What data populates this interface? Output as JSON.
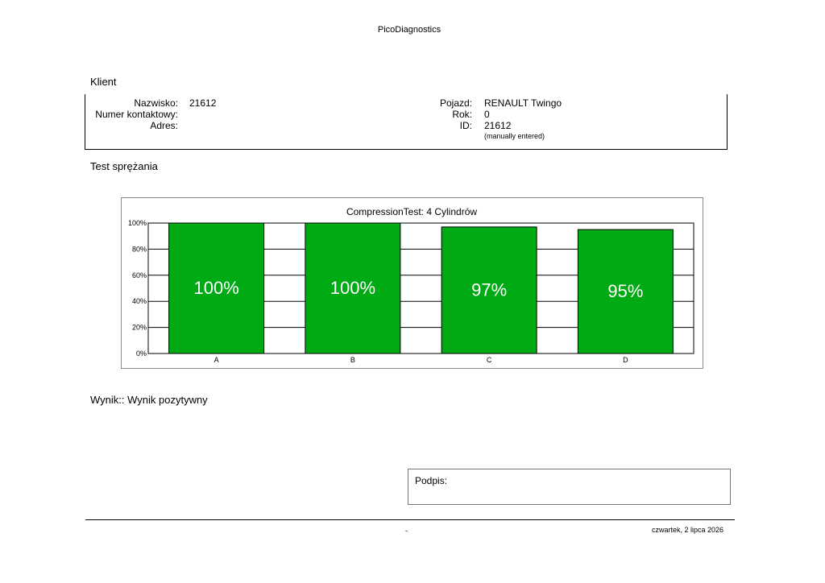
{
  "app_title": "PicoDiagnostics",
  "client": {
    "heading": "Klient",
    "surname_label": "Nazwisko:",
    "surname_value": "21612",
    "contact_label": "Numer kontaktowy:",
    "address_label": "Adres:",
    "vehicle_label": "Pojazd:",
    "vehicle_value": "RENAULT Twingo",
    "year_label": "Rok:",
    "year_value": "0",
    "id_label": "ID:",
    "id_value": "21612",
    "id_note": "(manually entered)"
  },
  "compression": {
    "heading": "Test sprężania"
  },
  "chart_data": {
    "type": "bar",
    "title": "CompressionTest: 4 Cylindrów",
    "categories": [
      "A",
      "B",
      "C",
      "D"
    ],
    "values": [
      100,
      100,
      97,
      95
    ],
    "value_labels": [
      "100%",
      "100%",
      "97%",
      "95%"
    ],
    "yticks": [
      "0%",
      "20%",
      "40%",
      "60%",
      "80%",
      "100%"
    ],
    "ylim": [
      0,
      100
    ],
    "bar_color": "#00aa14",
    "grid": true,
    "xlabel": "",
    "ylabel": ""
  },
  "result": {
    "text": "Wynik:: Wynik pozytywny"
  },
  "signature": {
    "label": "Podpis:"
  },
  "footer": {
    "dash": "-",
    "date": "czwartek, 2 lipca 2026"
  }
}
